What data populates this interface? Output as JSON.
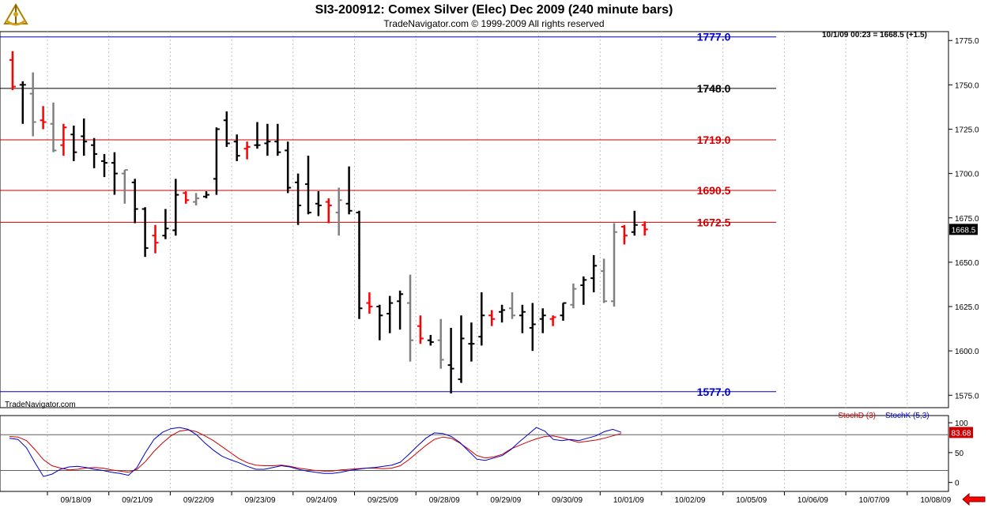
{
  "header": {
    "title": "SI3-200912:  Comex Silver (Elec) Dec 2009  (240 minute bars)",
    "subtitle": "TradeNavigator.com © 1999-2009 All rights reserved",
    "watermark": "TradeNavigator.com",
    "last_quote": "10/1/09 00:23 = 1668.5 (+1.5)",
    "logo_icon": "sextant-logo-icon"
  },
  "colors": {
    "bar_black": "#000000",
    "bar_gray": "#808080",
    "bar_red": "#ff0000",
    "bar_green": "#00cc00",
    "line_blue": "#0000cc",
    "line_red": "#cc0000",
    "grid": "#c0c0c0"
  },
  "chart_data": [
    {
      "type": "ohlc",
      "title": "SI3-200912:  Comex Silver (Elec) Dec 2009  (240 minute bars)",
      "ylim": [
        1568,
        1780
      ],
      "yticks": [
        1575.0,
        1600.0,
        1625.0,
        1650.0,
        1675.0,
        1700.0,
        1725.0,
        1750.0,
        1775.0
      ],
      "ytick_labels": [
        "1575.0",
        "1600.0",
        "1625.0",
        "1650.0",
        "1675.0",
        "1700.0",
        "1725.0",
        "1750.0",
        "1775.0"
      ],
      "x_labels": [
        "09/18/09",
        "09/21/09",
        "09/22/09",
        "09/23/09",
        "09/24/09",
        "09/25/09",
        "09/28/09",
        "09/29/09",
        "09/30/09",
        "10/01/09",
        "10/02/09",
        "10/05/09",
        "10/06/09",
        "10/07/09",
        "10/08/09"
      ],
      "last_price": "1668.5",
      "grid": true,
      "levels": [
        {
          "value": 1777.0,
          "label": "1777.0",
          "color": "#0000cc"
        },
        {
          "value": 1748.0,
          "label": "1748.0",
          "color": "#000000"
        },
        {
          "value": 1719.0,
          "label": "1719.0",
          "color": "#cc0000"
        },
        {
          "value": 1690.5,
          "label": "1690.5",
          "color": "#cc0000"
        },
        {
          "value": 1672.5,
          "label": "1672.5",
          "color": "#cc0000"
        },
        {
          "value": 1577.0,
          "label": "1577.0",
          "color": "#0000cc"
        }
      ],
      "bars": [
        [
          1,
          1769,
          1747,
          1764,
          1749,
          "r"
        ],
        [
          2,
          1752,
          1728,
          1750,
          1750,
          "k"
        ],
        [
          3,
          1757,
          1721,
          1745,
          1729,
          "g"
        ],
        [
          4,
          1738,
          1725,
          1730,
          1729,
          "r"
        ],
        [
          5,
          1740,
          1712,
          1728,
          1713,
          "g"
        ],
        [
          6,
          1728,
          1710,
          1716,
          1726,
          "r"
        ],
        [
          7,
          1727,
          1707,
          1722,
          1712,
          "k"
        ],
        [
          8,
          1731,
          1710,
          1721,
          1718,
          "k"
        ],
        [
          9,
          1720,
          1703,
          1716,
          1711,
          "k"
        ],
        [
          10,
          1711,
          1698,
          1707,
          1706,
          "k"
        ],
        [
          11,
          1712,
          1688,
          1706,
          1700,
          "k"
        ],
        [
          12,
          1702,
          1683,
          1700,
          1702,
          "g"
        ],
        [
          13,
          1697,
          1672,
          1695,
          1680,
          "k"
        ],
        [
          14,
          1681,
          1653,
          1680,
          1658,
          "k"
        ],
        [
          15,
          1671,
          1655,
          1665,
          1661,
          "r"
        ],
        [
          16,
          1680,
          1663,
          1665,
          1669,
          "k"
        ],
        [
          17,
          1697,
          1665,
          1668,
          1688,
          "k"
        ],
        [
          18,
          1690,
          1683,
          1689,
          1685,
          "r"
        ],
        [
          19,
          1689,
          1682,
          1684,
          1686,
          "g"
        ],
        [
          20,
          1690,
          1686,
          1687,
          1688,
          "k"
        ],
        [
          21,
          1726,
          1688,
          1697,
          1725,
          "k"
        ],
        [
          22,
          1735,
          1715,
          1730,
          1717,
          "k"
        ],
        [
          23,
          1722,
          1707,
          1718,
          1710,
          "k"
        ],
        [
          24,
          1718,
          1708,
          1714,
          1715,
          "r"
        ],
        [
          25,
          1729,
          1714,
          1716,
          1716,
          "k"
        ],
        [
          26,
          1728,
          1710,
          1717,
          1718,
          "k"
        ],
        [
          27,
          1728,
          1710,
          1718,
          1712,
          "k"
        ],
        [
          28,
          1718,
          1689,
          1713,
          1692,
          "k"
        ],
        [
          29,
          1700,
          1671,
          1695,
          1682,
          "k"
        ],
        [
          30,
          1710,
          1677,
          1694,
          1678,
          "k"
        ],
        [
          31,
          1690,
          1676,
          1683,
          1682,
          "k"
        ],
        [
          32,
          1686,
          1672,
          1684,
          1682,
          "r"
        ],
        [
          33,
          1692,
          1665,
          1678,
          1685,
          "g"
        ],
        [
          34,
          1704,
          1677,
          1683,
          1679,
          "k"
        ],
        [
          35,
          1679,
          1618,
          1678,
          1624,
          "k"
        ],
        [
          36,
          1633,
          1621,
          1627,
          1625,
          "r"
        ],
        [
          37,
          1626,
          1606,
          1625,
          1620,
          "k"
        ],
        [
          38,
          1631,
          1610,
          1621,
          1627,
          "k"
        ],
        [
          39,
          1634,
          1612,
          1628,
          1632,
          "k"
        ],
        [
          40,
          1643,
          1594,
          1627,
          1606,
          "g"
        ],
        [
          41,
          1620,
          1604,
          1614,
          1607,
          "r"
        ],
        [
          42,
          1609,
          1603,
          1606,
          1605,
          "k"
        ],
        [
          43,
          1618,
          1590,
          1606,
          1595,
          "g"
        ],
        [
          44,
          1613,
          1576,
          1592,
          1590,
          "k"
        ],
        [
          45,
          1620,
          1582,
          1584,
          1607,
          "k"
        ],
        [
          46,
          1616,
          1594,
          1604,
          1604,
          "k"
        ],
        [
          47,
          1633,
          1603,
          1608,
          1620,
          "k"
        ],
        [
          48,
          1623,
          1614,
          1620,
          1618,
          "r"
        ],
        [
          49,
          1626,
          1616,
          1622,
          1623,
          "k"
        ],
        [
          50,
          1633,
          1618,
          1624,
          1620,
          "g"
        ],
        [
          51,
          1626,
          1610,
          1620,
          1622,
          "k"
        ],
        [
          52,
          1627,
          1600,
          1613,
          1615,
          "k"
        ],
        [
          53,
          1624,
          1610,
          1618,
          1620,
          "k"
        ],
        [
          54,
          1620,
          1614,
          1618,
          1619,
          "r"
        ],
        [
          55,
          1627,
          1617,
          1620,
          1627,
          "k"
        ],
        [
          56,
          1638,
          1624,
          1626,
          1635,
          "g"
        ],
        [
          57,
          1642,
          1626,
          1637,
          1640,
          "k"
        ],
        [
          58,
          1654,
          1633,
          1641,
          1648,
          "k"
        ],
        [
          59,
          1652,
          1627,
          1645,
          1628,
          "g"
        ],
        [
          60,
          1672,
          1625,
          1628,
          1667,
          "g"
        ],
        [
          61,
          1671,
          1660,
          1670,
          1665,
          "r"
        ],
        [
          62,
          1679,
          1665,
          1667,
          1671,
          "k"
        ],
        [
          63,
          1673,
          1665,
          1671,
          1668.5,
          "r"
        ]
      ]
    },
    {
      "type": "line",
      "title": "",
      "ylim": [
        -15,
        112
      ],
      "yticks": [
        0,
        50,
        100
      ],
      "ytick_labels": [
        "0",
        "50",
        "100"
      ],
      "levels": [
        {
          "value": 80
        },
        {
          "value": 20
        }
      ],
      "series": [
        {
          "name": "StochD (3)",
          "color": "#cc0000",
          "values": [
            77,
            76,
            70,
            55,
            38,
            28,
            24,
            21,
            22,
            24,
            25,
            24,
            21,
            19,
            17,
            22,
            35,
            52,
            66,
            78,
            86,
            88,
            85,
            78,
            70,
            60,
            50,
            40,
            33,
            29,
            28,
            28,
            29,
            27,
            24,
            22,
            20,
            19,
            19,
            21,
            22,
            23,
            24,
            24,
            23,
            24,
            28,
            38,
            50,
            62,
            72,
            76,
            74,
            66,
            56,
            45,
            41,
            43,
            47,
            56,
            62,
            68,
            73,
            77,
            78,
            75,
            71,
            67,
            69,
            71,
            74,
            78,
            82
          ]
        },
        {
          "name": "StochK (5,3)",
          "color": "#0000cc",
          "values": [
            74,
            72,
            58,
            33,
            10,
            14,
            22,
            26,
            27,
            25,
            22,
            20,
            17,
            15,
            12,
            25,
            50,
            72,
            84,
            90,
            92,
            89,
            80,
            66,
            54,
            44,
            38,
            33,
            27,
            22,
            22,
            25,
            28,
            26,
            22,
            19,
            17,
            15,
            15,
            17,
            20,
            22,
            24,
            25,
            27,
            29,
            34,
            47,
            61,
            74,
            83,
            82,
            77,
            67,
            53,
            39,
            37,
            41,
            45,
            55,
            68,
            80,
            92,
            86,
            72,
            70,
            72,
            70,
            74,
            78,
            85,
            89,
            84
          ]
        }
      ],
      "last_value": "83.68"
    }
  ]
}
